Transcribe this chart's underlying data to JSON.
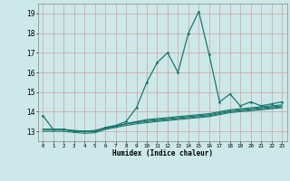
{
  "title": "",
  "xlabel": "Humidex (Indice chaleur)",
  "bg_color": "#cce8e8",
  "grid_color": "#d4a0a0",
  "line_color": "#1a7a6e",
  "xlim": [
    -0.5,
    23.5
  ],
  "ylim": [
    12.5,
    19.5
  ],
  "yticks": [
    13,
    14,
    15,
    16,
    17,
    18,
    19
  ],
  "xticks": [
    0,
    1,
    2,
    3,
    4,
    5,
    6,
    7,
    8,
    9,
    10,
    11,
    12,
    13,
    14,
    15,
    16,
    17,
    18,
    19,
    20,
    21,
    22,
    23
  ],
  "xtick_labels": [
    "0",
    "1",
    "2",
    "3",
    "4",
    "5",
    "6",
    "7",
    "8",
    "9",
    "10",
    "11",
    "12",
    "13",
    "14",
    "15",
    "16",
    "17",
    "18",
    "19",
    "20",
    "21",
    "22",
    "23"
  ],
  "series_main": [
    13.8,
    13.1,
    13.1,
    13.0,
    13.0,
    13.0,
    13.2,
    13.3,
    13.5,
    14.2,
    15.5,
    16.5,
    17.0,
    16.0,
    18.0,
    19.1,
    16.9,
    14.5,
    14.9,
    14.3,
    14.5,
    14.3,
    14.4,
    14.5
  ],
  "series_flat": [
    [
      13.1,
      13.1,
      13.1,
      13.0,
      13.0,
      13.0,
      13.15,
      13.25,
      13.4,
      13.5,
      13.6,
      13.65,
      13.7,
      13.75,
      13.8,
      13.85,
      13.9,
      14.0,
      14.1,
      14.15,
      14.2,
      14.25,
      14.3,
      14.35
    ],
    [
      13.1,
      13.1,
      13.1,
      13.0,
      13.0,
      13.0,
      13.15,
      13.25,
      13.38,
      13.48,
      13.55,
      13.6,
      13.65,
      13.7,
      13.75,
      13.8,
      13.85,
      13.95,
      14.05,
      14.1,
      14.15,
      14.2,
      14.25,
      14.3
    ],
    [
      13.1,
      13.1,
      13.1,
      13.05,
      13.0,
      13.05,
      13.18,
      13.28,
      13.38,
      13.44,
      13.5,
      13.55,
      13.6,
      13.65,
      13.7,
      13.75,
      13.8,
      13.9,
      14.0,
      14.05,
      14.1,
      14.15,
      14.2,
      14.25
    ],
    [
      13.0,
      13.0,
      13.0,
      12.95,
      12.9,
      12.93,
      13.1,
      13.2,
      13.3,
      13.38,
      13.44,
      13.5,
      13.55,
      13.6,
      13.65,
      13.7,
      13.75,
      13.85,
      13.95,
      14.0,
      14.05,
      14.1,
      14.15,
      14.2
    ]
  ]
}
